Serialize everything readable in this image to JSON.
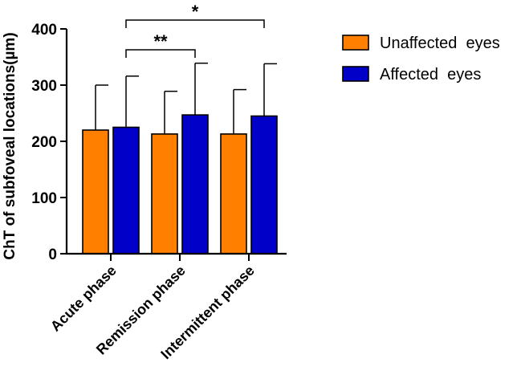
{
  "chart_data": {
    "type": "bar",
    "title": "",
    "ylabel": "ChT of subfoveal locations(µm)",
    "xlabel": "",
    "ylim": [
      0,
      400
    ],
    "yticks": [
      "0",
      "100",
      "200",
      "300",
      "400"
    ],
    "categories": [
      "Acute phase",
      "Remission phase",
      "Intermittent phase"
    ],
    "series": [
      {
        "name": "Unaffected  eyes",
        "color": "#FF7F00",
        "values": [
          220,
          213,
          213
        ],
        "errors": [
          80,
          76,
          79
        ]
      },
      {
        "name": "Affected  eyes",
        "color": "#0000C8",
        "values": [
          225,
          247,
          245
        ],
        "errors": [
          91,
          92,
          93
        ]
      }
    ],
    "significance": [
      {
        "label": "**",
        "from": "Acute phase",
        "to": "Remission phase",
        "series": "Affected  eyes"
      },
      {
        "label": "*",
        "from": "Acute phase",
        "to": "Intermittent phase",
        "series": "Affected  eyes"
      }
    ],
    "legend_position": "right"
  }
}
